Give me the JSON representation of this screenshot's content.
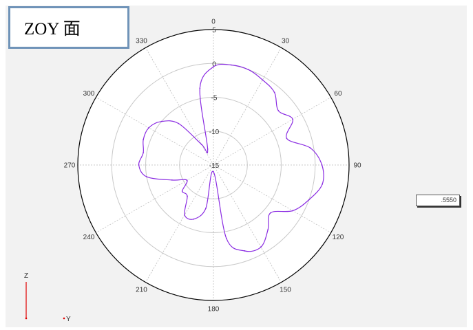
{
  "title": "ZOY 面",
  "value_box": ".5550",
  "colors": {
    "background": "#f2f2f2",
    "grid": "#c8c8c8",
    "outer_ring": "#000000",
    "trace": "#8a2be2",
    "axis_indicator": "#e00000",
    "title_border": "#6f93b8"
  },
  "axis_indicator": {
    "z_label": "Z",
    "y_label": "Y"
  },
  "chart_data": {
    "type": "line",
    "coordinate_system": "polar",
    "angle_direction": "clockwise",
    "angle_zero": "top",
    "angle_ticks": [
      0,
      30,
      60,
      90,
      120,
      150,
      180,
      210,
      240,
      270,
      300,
      330
    ],
    "angle_tick_labels": [
      "0",
      "30",
      "60",
      "90",
      "120",
      "150",
      "180",
      "210",
      "240",
      "270",
      "300",
      "330"
    ],
    "radial_ticks": [
      5,
      0,
      -5,
      -10,
      -15
    ],
    "radial_tick_labels": [
      "5",
      "0",
      "-5",
      "-10",
      "-15"
    ],
    "rlim": [
      -15,
      5
    ],
    "grid": true,
    "series": [
      {
        "theta": [
          0,
          10,
          20,
          30,
          40,
          50,
          60,
          70,
          80,
          90,
          100,
          110,
          120,
          130,
          140,
          150,
          160,
          170,
          180,
          190,
          200,
          210,
          220,
          230,
          240,
          250,
          260,
          270,
          280,
          290,
          300,
          310,
          320,
          330,
          340,
          350,
          360
        ],
        "r": [
          -0.5,
          0.0,
          0.0,
          -0.5,
          -1.0,
          -2.5,
          -1.5,
          -3.5,
          -0.5,
          1.0,
          1.3,
          0.0,
          -1.5,
          -4.0,
          -2.5,
          -1.0,
          -1.5,
          -4.0,
          -14.0,
          -8.5,
          -6.5,
          -6.5,
          -9.0,
          -9.0,
          -10.5,
          -8.5,
          -5.0,
          -4.0,
          -4.5,
          -4.0,
          -4.0,
          -5.0,
          -7.0,
          -11.5,
          -12.5,
          -3.5,
          -0.5
        ]
      }
    ]
  }
}
